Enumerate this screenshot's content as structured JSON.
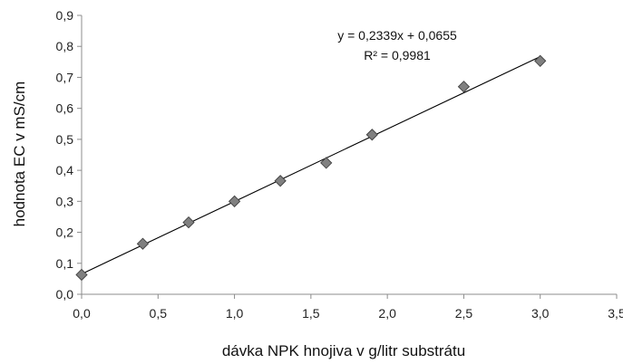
{
  "chart_data": {
    "type": "scatter",
    "title": "",
    "xlabel": "dávka NPK hnojiva v g/litr substrátu",
    "ylabel": "hodnota EC v mS/cm",
    "xlim": [
      0,
      3.5
    ],
    "ylim": [
      0,
      0.9
    ],
    "x_ticks": [
      "0,0",
      "0,5",
      "1,0",
      "1,5",
      "2,0",
      "2,5",
      "3,0",
      "3,5"
    ],
    "y_ticks": [
      "0,0",
      "0,1",
      "0,2",
      "0,3",
      "0,4",
      "0,5",
      "0,6",
      "0,7",
      "0,8",
      "0,9"
    ],
    "grid": false,
    "legend": "none",
    "marker": "diamond",
    "marker_color": "#808080",
    "x": [
      0.0,
      0.4,
      0.7,
      1.0,
      1.3,
      1.6,
      1.9,
      2.5,
      3.0
    ],
    "y": [
      0.063,
      0.163,
      0.232,
      0.3,
      0.366,
      0.424,
      0.515,
      0.67,
      0.753
    ],
    "trendline": {
      "slope": 0.2339,
      "intercept": 0.0655,
      "x_range": [
        0,
        3.0
      ]
    },
    "annotations": {
      "equation": "y = 0,2339x + 0,0655",
      "r_squared": "R² = 0,9981"
    }
  }
}
